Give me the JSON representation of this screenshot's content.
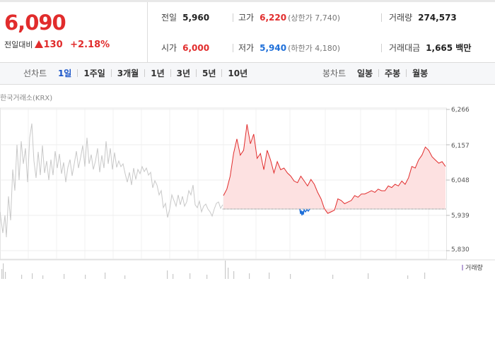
{
  "quote": {
    "price": "6,090",
    "change_label": "전일대비",
    "change_value": "130",
    "change_pct": "+2.18%",
    "prev_close_label": "전일",
    "prev_close": "5,960",
    "open_label": "시가",
    "open": "6,000",
    "high_label": "고가",
    "high": "6,220",
    "upper_limit": "(상한가 7,740)",
    "low_label": "저가",
    "low": "5,940",
    "lower_limit": "(하한가 4,180)",
    "volume_label": "거래량",
    "volume": "274,573",
    "amount_label": "거래대금",
    "amount": "1,665 백만"
  },
  "colors": {
    "up": "#e12c2c",
    "down": "#1e6fd9",
    "accent": "#1a55c8"
  },
  "tabs": {
    "line_title": "선차트",
    "line_items": [
      "1일",
      "1주일",
      "3개월",
      "1년",
      "3년",
      "5년",
      "10년"
    ],
    "line_active": "1일",
    "candle_title": "봉차트",
    "candle_items": [
      "일봉",
      "주봉",
      "월봉"
    ]
  },
  "chart": {
    "source": "한국거래소(KRX)",
    "y_ticks": [
      "6,266",
      "6,157",
      "6,048",
      "5,939",
      "5,830"
    ],
    "volume_legend": "거래량"
  },
  "chart_data": {
    "type": "line",
    "ylim": [
      5830,
      6266
    ],
    "y_ticks": [
      6266,
      6157,
      6048,
      5939,
      5830
    ],
    "baseline": 5960,
    "series": [
      {
        "values": [
          6000,
          6020,
          6060,
          6130,
          6175,
          6125,
          6140,
          6220,
          6160,
          6190,
          6115,
          6130,
          6080,
          6140,
          6110,
          6070,
          6105,
          6080,
          6085,
          6070,
          6060,
          6045,
          6040,
          6060,
          6045,
          6030,
          6050,
          6035,
          6010,
          5990,
          5960,
          5945,
          5950,
          5955,
          5990,
          5985,
          5975,
          5980,
          5985,
          6000,
          5995,
          6005,
          6005,
          6010,
          6015,
          6010,
          6020,
          6015,
          6015,
          6030,
          6025,
          6035,
          6030,
          6045,
          6035,
          6055,
          6090,
          6085,
          6110,
          6125,
          6150,
          6140,
          6120,
          6110,
          6100,
          6105,
          6090
        ]
      }
    ]
  }
}
